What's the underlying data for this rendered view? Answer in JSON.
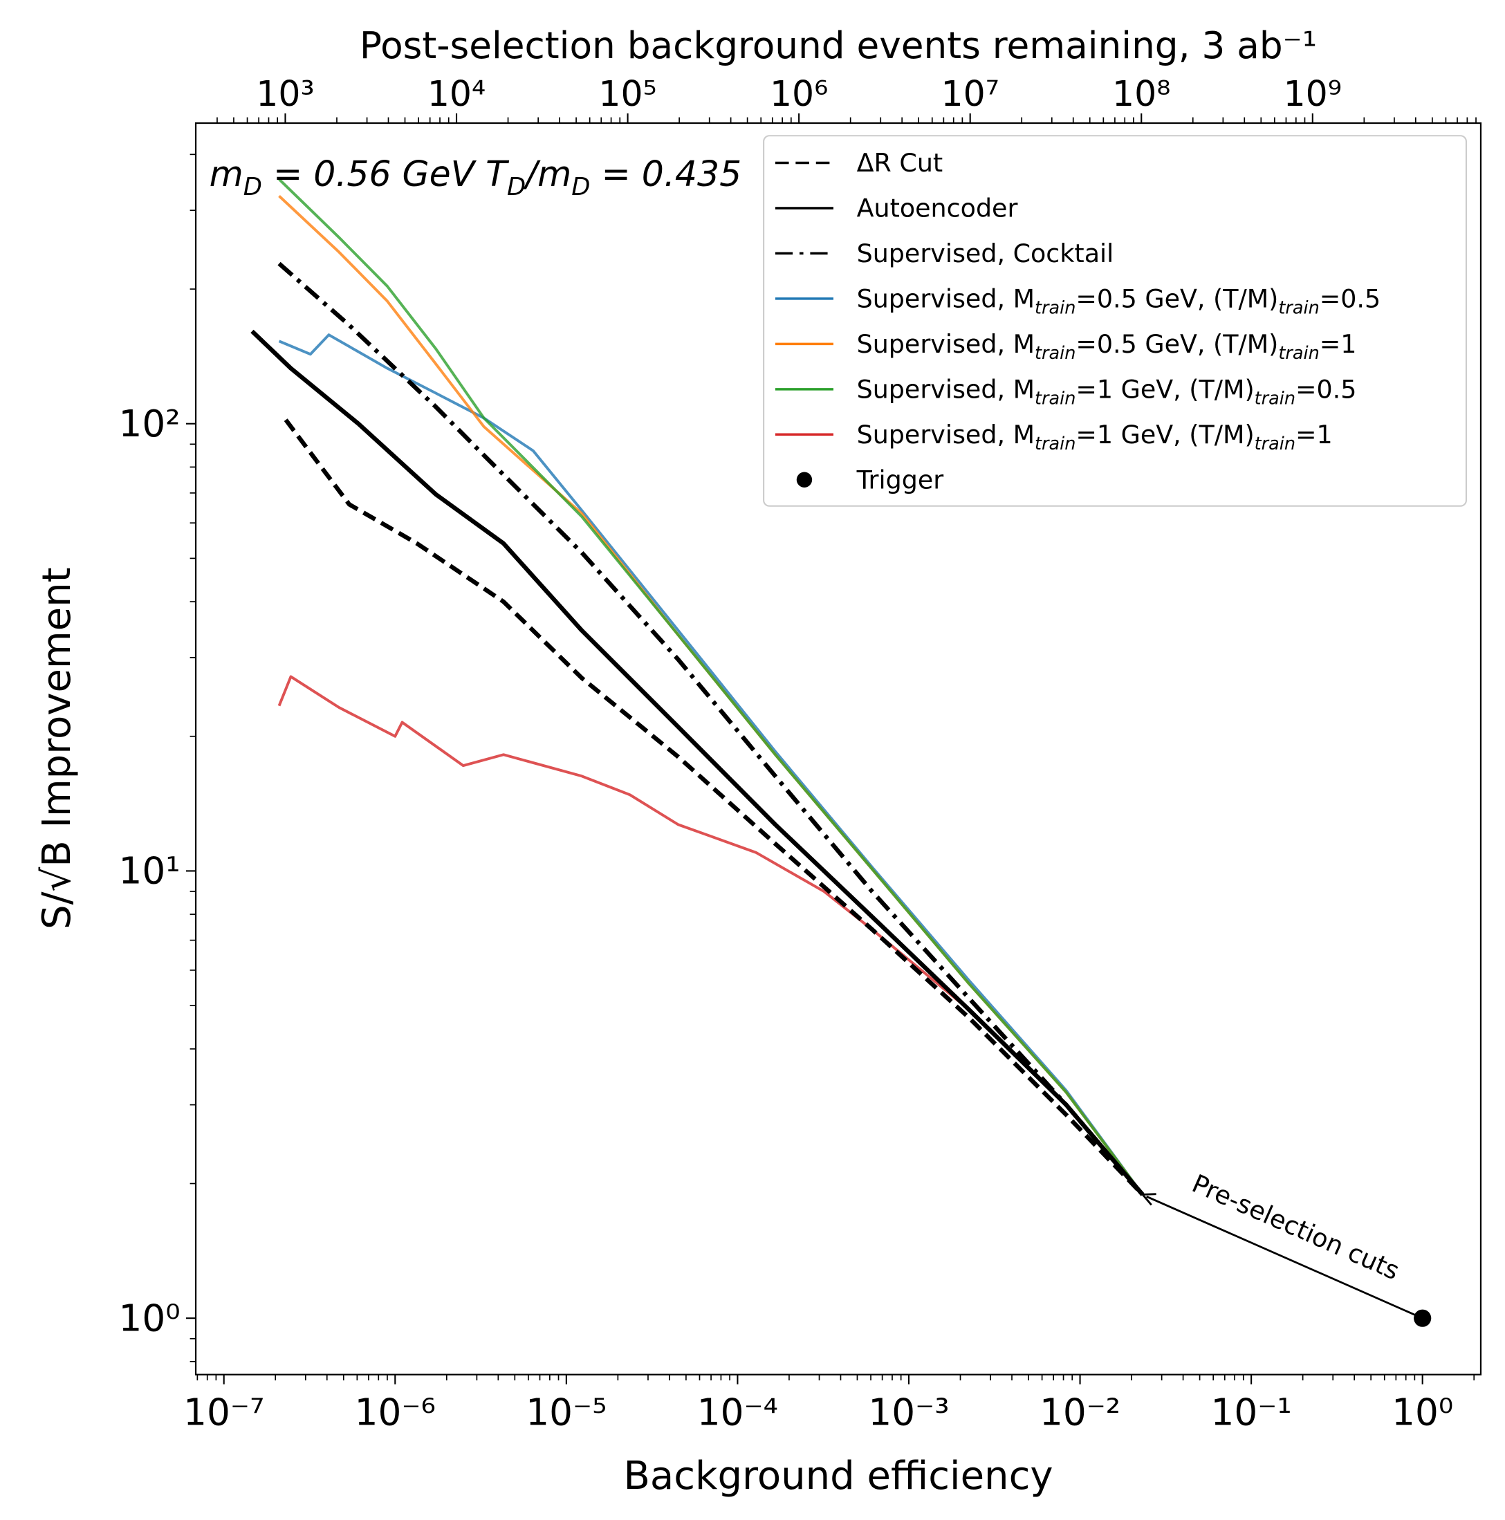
{
  "chart_data": {
    "type": "line",
    "xlabel": "Background efficiency",
    "ylabel": "S/√B Improvement",
    "x2label": "Post-selection background events remaining, 3 ab⁻¹",
    "text": "m_D = 0.56 GeV T_D/m_D = 0.435",
    "annotation": "Pre-selection cuts",
    "log_x": true,
    "log_y": true,
    "legend": "upper right",
    "xlim": [
      6.85e-08,
      2.19
    ],
    "ylim": [
      0.748,
      470
    ],
    "x2lim": [
      300,
      9600000000.0
    ],
    "xticks": [
      {
        "value": 1e-07,
        "label": "10⁻⁷"
      },
      {
        "value": 1e-06,
        "label": "10⁻⁶"
      },
      {
        "value": 1e-05,
        "label": "10⁻⁵"
      },
      {
        "value": 0.0001,
        "label": "10⁻⁴"
      },
      {
        "value": 0.001,
        "label": "10⁻³"
      },
      {
        "value": 0.01,
        "label": "10⁻²"
      },
      {
        "value": 0.1,
        "label": "10⁻¹"
      },
      {
        "value": 1,
        "label": "10⁰"
      }
    ],
    "yticks": [
      {
        "value": 1,
        "label": "10⁰"
      },
      {
        "value": 10,
        "label": "10¹"
      },
      {
        "value": 100,
        "label": "10²"
      }
    ],
    "x2ticks": [
      {
        "value": 1000.0,
        "label": "10³"
      },
      {
        "value": 10000.0,
        "label": "10⁴"
      },
      {
        "value": 100000.0,
        "label": "10⁵"
      },
      {
        "value": 1000000.0,
        "label": "10⁶"
      },
      {
        "value": 10000000.0,
        "label": "10⁷"
      },
      {
        "value": 100000000.0,
        "label": "10⁸"
      },
      {
        "value": 1000000000.0,
        "label": "10⁹"
      }
    ],
    "series": [
      {
        "name": "ΔR Cut",
        "color": "#000000",
        "linestyle": "dashed",
        "x": [
          2.3e-07,
          5.4e-07,
          1.34e-06,
          4.3e-06,
          1.23e-05,
          4.5e-05,
          0.000166,
          0.00061,
          0.00224,
          0.0083,
          0.0232
        ],
        "values": [
          102,
          66,
          54,
          40,
          27,
          18,
          11.5,
          7.4,
          4.7,
          2.85,
          1.89
        ]
      },
      {
        "name": "Autoencoder",
        "color": "#000000",
        "linestyle": "solid",
        "x": [
          1.46e-07,
          2.46e-07,
          6.1e-07,
          1.73e-06,
          4.3e-06,
          1.23e-05,
          4.5e-05,
          0.000166,
          0.00061,
          0.00224,
          0.0083,
          0.0232
        ],
        "values": [
          161,
          133,
          100,
          69.5,
          54,
          34.5,
          21,
          12.7,
          7.9,
          4.9,
          3.0,
          1.89
        ]
      },
      {
        "name": "Supervised, Cocktail",
        "color": "#000000",
        "linestyle": "dashdot",
        "x": [
          2.1e-07,
          5.4e-07,
          1.73e-06,
          3.3e-06,
          1.23e-05,
          4.5e-05,
          0.000166,
          0.00061,
          0.00224,
          0.0083,
          0.0232
        ],
        "values": [
          228,
          166,
          109,
          85,
          51.5,
          29.7,
          16.3,
          9.0,
          5.2,
          3.0,
          1.89
        ]
      },
      {
        "name": "Supervised, M_train=0.5 GeV, (T/M)_train=0.5",
        "color": "#1f77b4",
        "linestyle": "solid",
        "x": [
          2.1e-07,
          3.2e-07,
          4.1e-07,
          9e-07,
          1.73e-06,
          3.3e-06,
          6.4e-06,
          1.23e-05,
          4.5e-05,
          0.000166,
          0.00061,
          0.00224,
          0.0083,
          0.0232
        ],
        "values": [
          153,
          143,
          158,
          133,
          117,
          103,
          87,
          64,
          34.5,
          18.5,
          10.2,
          5.7,
          3.23,
          1.89
        ]
      },
      {
        "name": "Supervised, M_train=0.5 GeV, (T/M)_train=1",
        "color": "#ff7f0e",
        "linestyle": "solid",
        "x": [
          2.1e-07,
          4.7e-07,
          9e-07,
          1.73e-06,
          3.3e-06,
          1.23e-05,
          4.5e-05,
          0.000166,
          0.00061,
          0.00224,
          0.0083,
          0.0232
        ],
        "values": [
          323,
          242,
          188,
          136,
          98.5,
          63,
          33.7,
          18.2,
          10.1,
          5.6,
          3.2,
          1.89
        ]
      },
      {
        "name": "Supervised, M_train=1 GeV, (T/M)_train=0.5",
        "color": "#2ca02c",
        "linestyle": "solid",
        "x": [
          2.1e-07,
          4.7e-07,
          9e-07,
          1.73e-06,
          3.3e-06,
          1.23e-05,
          4.5e-05,
          0.000166,
          0.00061,
          0.00224,
          0.0083,
          0.0232
        ],
        "values": [
          352,
          261,
          203,
          147,
          103,
          62,
          33.7,
          18.2,
          10.1,
          5.6,
          3.2,
          1.89
        ]
      },
      {
        "name": "Supervised, M_train=1 GeV, (T/M)_train=1",
        "color": "#d62728",
        "linestyle": "solid",
        "x": [
          2.1e-07,
          2.46e-07,
          4.7e-07,
          1e-06,
          1.1e-06,
          2.5e-06,
          4.3e-06,
          1.23e-05,
          2.35e-05,
          4.5e-05,
          0.000128,
          0.00032,
          0.00061,
          0.00224,
          0.0083,
          0.0232
        ],
        "values": [
          23.4,
          27.2,
          23.2,
          20,
          21.5,
          17.2,
          18.2,
          16.3,
          14.8,
          12.7,
          11,
          9.0,
          7.4,
          4.9,
          3.0,
          1.89
        ]
      },
      {
        "name": "Trigger",
        "color": "#000000",
        "marker": "o",
        "x": [
          1
        ],
        "values": [
          1
        ]
      }
    ]
  }
}
